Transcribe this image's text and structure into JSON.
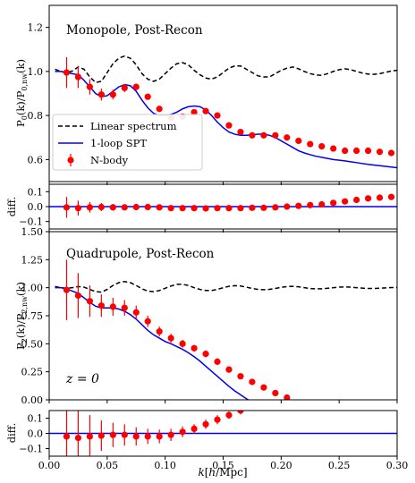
{
  "chart_data": [
    {
      "type": "line",
      "id": "monopole",
      "title": "Monopole, Post-Recon",
      "ylabel": "P_0(k)/P_0,nw(k)",
      "xlim": [
        0.0,
        0.3
      ],
      "ylim": [
        0.5,
        1.3
      ],
      "yticks": [
        0.6,
        0.8,
        1.0,
        1.2
      ],
      "yticklabels": [
        "0.6",
        "0.8",
        "1.0",
        "1.2"
      ],
      "legend": {
        "placement": "lower-left",
        "entries": [
          "Linear spectrum",
          "1-loop SPT",
          "N-body"
        ]
      },
      "series": [
        {
          "name": "Linear spectrum",
          "style": "dashed",
          "color": "#000000",
          "x": [
            0.005,
            0.01,
            0.015,
            0.02,
            0.025,
            0.03,
            0.035,
            0.04,
            0.045,
            0.05,
            0.055,
            0.06,
            0.065,
            0.07,
            0.075,
            0.08,
            0.085,
            0.09,
            0.095,
            0.1,
            0.105,
            0.11,
            0.115,
            0.12,
            0.125,
            0.13,
            0.135,
            0.14,
            0.145,
            0.15,
            0.155,
            0.16,
            0.165,
            0.17,
            0.175,
            0.18,
            0.185,
            0.19,
            0.195,
            0.2,
            0.205,
            0.21,
            0.215,
            0.22,
            0.225,
            0.23,
            0.235,
            0.24,
            0.245,
            0.25,
            0.255,
            0.26,
            0.265,
            0.27,
            0.275,
            0.28,
            0.285,
            0.29,
            0.295,
            0.3
          ],
          "y": [
            1.01,
            1.0,
            0.995,
            1.002,
            1.02,
            1.01,
            0.975,
            0.95,
            0.955,
            0.995,
            1.035,
            1.06,
            1.07,
            1.06,
            1.03,
            0.99,
            0.965,
            0.955,
            0.965,
            0.99,
            1.015,
            1.035,
            1.04,
            1.03,
            1.005,
            0.985,
            0.97,
            0.965,
            0.975,
            0.995,
            1.015,
            1.025,
            1.025,
            1.01,
            0.995,
            0.98,
            0.975,
            0.975,
            0.99,
            1.005,
            1.015,
            1.02,
            1.012,
            1.0,
            0.99,
            0.984,
            0.982,
            0.99,
            1.0,
            1.008,
            1.012,
            1.008,
            1.0,
            0.993,
            0.988,
            0.987,
            0.99,
            0.996,
            1.002,
            1.005
          ]
        },
        {
          "name": "1-loop SPT",
          "style": "solid",
          "color": "#0000ee",
          "x": [
            0.005,
            0.01,
            0.015,
            0.02,
            0.025,
            0.03,
            0.035,
            0.04,
            0.045,
            0.05,
            0.055,
            0.06,
            0.065,
            0.07,
            0.075,
            0.08,
            0.085,
            0.09,
            0.095,
            0.1,
            0.105,
            0.11,
            0.115,
            0.12,
            0.125,
            0.13,
            0.135,
            0.14,
            0.145,
            0.15,
            0.155,
            0.16,
            0.165,
            0.17,
            0.175,
            0.18,
            0.185,
            0.19,
            0.195,
            0.2,
            0.205,
            0.21,
            0.215,
            0.22,
            0.225,
            0.23,
            0.235,
            0.24,
            0.245,
            0.25,
            0.255,
            0.26,
            0.265,
            0.27,
            0.275,
            0.28,
            0.285,
            0.29,
            0.295,
            0.3
          ],
          "y": [
            1.0,
            1.0,
            0.995,
            0.99,
            0.985,
            0.96,
            0.93,
            0.9,
            0.885,
            0.89,
            0.91,
            0.93,
            0.94,
            0.935,
            0.91,
            0.87,
            0.835,
            0.81,
            0.8,
            0.8,
            0.805,
            0.815,
            0.83,
            0.84,
            0.843,
            0.84,
            0.825,
            0.8,
            0.77,
            0.745,
            0.725,
            0.715,
            0.71,
            0.71,
            0.712,
            0.715,
            0.715,
            0.71,
            0.7,
            0.685,
            0.67,
            0.655,
            0.64,
            0.63,
            0.622,
            0.615,
            0.61,
            0.605,
            0.6,
            0.597,
            0.594,
            0.59,
            0.586,
            0.582,
            0.578,
            0.575,
            0.572,
            0.569,
            0.566,
            0.563
          ]
        },
        {
          "name": "N-body",
          "style": "points",
          "color": "#ff0000",
          "x": [
            0.015,
            0.025,
            0.035,
            0.045,
            0.055,
            0.065,
            0.075,
            0.085,
            0.095,
            0.105,
            0.115,
            0.125,
            0.135,
            0.145,
            0.155,
            0.165,
            0.175,
            0.185,
            0.195,
            0.205,
            0.215,
            0.225,
            0.235,
            0.245,
            0.255,
            0.265,
            0.275,
            0.285,
            0.295
          ],
          "y": [
            0.995,
            0.975,
            0.93,
            0.895,
            0.895,
            0.925,
            0.93,
            0.885,
            0.83,
            0.79,
            0.795,
            0.815,
            0.82,
            0.8,
            0.755,
            0.725,
            0.71,
            0.71,
            0.71,
            0.7,
            0.685,
            0.67,
            0.66,
            0.65,
            0.64,
            0.64,
            0.64,
            0.635,
            0.63
          ],
          "err": [
            0.07,
            0.05,
            0.035,
            0.027,
            0.022,
            0.018,
            0.015,
            0.013,
            0.011,
            0.01,
            0.009,
            0.008,
            0.007,
            0.006,
            0.006,
            0.005,
            0.005,
            0.004,
            0.004,
            0.004,
            0.004,
            0.003,
            0.003,
            0.003,
            0.003,
            0.003,
            0.003,
            0.003,
            0.003
          ]
        }
      ]
    },
    {
      "type": "line",
      "id": "monopole-diff",
      "ylabel": "diff.",
      "xlim": [
        0.0,
        0.3
      ],
      "ylim": [
        -0.15,
        0.15
      ],
      "yticks": [
        0.1,
        0.0,
        -0.1
      ],
      "yticklabels": [
        "0.1",
        "0.0",
        "−0.1"
      ],
      "series": [
        {
          "style": "solid",
          "color": "#0000ee",
          "x": [
            0.0,
            0.3
          ],
          "y": [
            0.0,
            0.0
          ]
        },
        {
          "style": "points",
          "color": "#ff0000",
          "x": [
            0.015,
            0.025,
            0.035,
            0.045,
            0.055,
            0.065,
            0.075,
            0.085,
            0.095,
            0.105,
            0.115,
            0.125,
            0.135,
            0.145,
            0.155,
            0.165,
            0.175,
            0.185,
            0.195,
            0.205,
            0.215,
            0.225,
            0.235,
            0.245,
            0.255,
            0.265,
            0.275,
            0.285,
            0.295
          ],
          "y": [
            -0.005,
            -0.01,
            -0.005,
            -0.003,
            -0.005,
            -0.005,
            -0.003,
            -0.003,
            -0.005,
            -0.01,
            -0.01,
            -0.01,
            -0.012,
            -0.01,
            -0.01,
            -0.01,
            -0.008,
            -0.008,
            -0.005,
            0.0,
            0.005,
            0.01,
            0.015,
            0.025,
            0.035,
            0.045,
            0.055,
            0.06,
            0.065
          ],
          "err": [
            0.07,
            0.05,
            0.035,
            0.027,
            0.022,
            0.018,
            0.015,
            0.013,
            0.011,
            0.01,
            0.009,
            0.008,
            0.007,
            0.006,
            0.006,
            0.005,
            0.005,
            0.004,
            0.004,
            0.004,
            0.004,
            0.003,
            0.003,
            0.003,
            0.003,
            0.003,
            0.003,
            0.003,
            0.003
          ]
        }
      ]
    },
    {
      "type": "line",
      "id": "quadrupole",
      "title": "Quadrupole, Post-Recon",
      "annotation": "z = 0",
      "ylabel": "P_2(k)/P_2,nw(k)",
      "xlim": [
        0.0,
        0.3
      ],
      "ylim": [
        0.0,
        1.5
      ],
      "yticks": [
        0.0,
        0.25,
        0.5,
        0.75,
        1.0,
        1.25,
        1.5
      ],
      "yticklabels": [
        "0.00",
        "0.25",
        "0.50",
        "0.75",
        "1.00",
        "1.25",
        "1.50"
      ],
      "series": [
        {
          "name": "Linear spectrum",
          "style": "dashed",
          "color": "#000000",
          "x": [
            0.005,
            0.01,
            0.015,
            0.02,
            0.025,
            0.03,
            0.035,
            0.04,
            0.045,
            0.05,
            0.055,
            0.06,
            0.065,
            0.07,
            0.075,
            0.08,
            0.085,
            0.09,
            0.095,
            0.1,
            0.105,
            0.11,
            0.115,
            0.12,
            0.125,
            0.13,
            0.135,
            0.14,
            0.145,
            0.15,
            0.155,
            0.16,
            0.165,
            0.17,
            0.175,
            0.18,
            0.185,
            0.19,
            0.195,
            0.2,
            0.205,
            0.21,
            0.215,
            0.22,
            0.225,
            0.23,
            0.235,
            0.24,
            0.245,
            0.25,
            0.255,
            0.26,
            0.265,
            0.27,
            0.275,
            0.28,
            0.285,
            0.29,
            0.295,
            0.3
          ],
          "y": [
            1.01,
            1.0,
            0.995,
            1.0,
            1.01,
            1.005,
            0.985,
            0.965,
            0.96,
            0.985,
            1.02,
            1.045,
            1.055,
            1.045,
            1.02,
            0.99,
            0.97,
            0.965,
            0.975,
            0.995,
            1.015,
            1.03,
            1.03,
            1.02,
            1.0,
            0.985,
            0.975,
            0.975,
            0.985,
            1.0,
            1.012,
            1.018,
            1.015,
            1.005,
            0.993,
            0.985,
            0.982,
            0.985,
            0.993,
            1.003,
            1.01,
            1.012,
            1.008,
            1.0,
            0.993,
            0.99,
            0.99,
            0.995,
            1.0,
            1.005,
            1.007,
            1.005,
            1.0,
            0.996,
            0.993,
            0.993,
            0.995,
            0.998,
            1.001,
            1.003
          ]
        },
        {
          "name": "1-loop SPT",
          "style": "solid",
          "color": "#0000ee",
          "x": [
            0.005,
            0.01,
            0.015,
            0.02,
            0.025,
            0.03,
            0.035,
            0.04,
            0.045,
            0.05,
            0.055,
            0.06,
            0.065,
            0.07,
            0.075,
            0.08,
            0.085,
            0.09,
            0.095,
            0.1,
            0.105,
            0.11,
            0.115,
            0.12,
            0.125,
            0.13,
            0.135,
            0.14,
            0.145,
            0.15,
            0.155,
            0.16,
            0.165,
            0.17,
            0.175
          ],
          "y": [
            1.0,
            1.0,
            0.99,
            0.97,
            0.95,
            0.91,
            0.87,
            0.835,
            0.82,
            0.82,
            0.82,
            0.81,
            0.79,
            0.76,
            0.72,
            0.67,
            0.62,
            0.58,
            0.55,
            0.52,
            0.5,
            0.475,
            0.45,
            0.42,
            0.385,
            0.345,
            0.3,
            0.255,
            0.21,
            0.165,
            0.12,
            0.08,
            0.045,
            0.01,
            -0.02
          ]
        },
        {
          "name": "N-body",
          "style": "points",
          "color": "#ff0000",
          "x": [
            0.015,
            0.025,
            0.035,
            0.045,
            0.055,
            0.065,
            0.075,
            0.085,
            0.095,
            0.105,
            0.115,
            0.125,
            0.135,
            0.145,
            0.155,
            0.165,
            0.175,
            0.185,
            0.195,
            0.205
          ],
          "y": [
            0.98,
            0.93,
            0.88,
            0.84,
            0.83,
            0.82,
            0.78,
            0.7,
            0.61,
            0.55,
            0.5,
            0.46,
            0.41,
            0.34,
            0.27,
            0.21,
            0.16,
            0.11,
            0.06,
            0.02
          ],
          "err": [
            0.27,
            0.2,
            0.14,
            0.1,
            0.08,
            0.07,
            0.06,
            0.05,
            0.045,
            0.04,
            0.035,
            0.03,
            0.03,
            0.03,
            0.025,
            0.025,
            0.02,
            0.02,
            0.02,
            0.02
          ]
        }
      ]
    },
    {
      "type": "line",
      "id": "quadrupole-diff",
      "ylabel": "diff.",
      "xlabel": "k[h/Mpc]",
      "xlim": [
        0.0,
        0.3
      ],
      "xticks": [
        0.0,
        0.05,
        0.1,
        0.15,
        0.2,
        0.25,
        0.3
      ],
      "xticklabels": [
        "0.00",
        "0.05",
        "0.10",
        "0.15",
        "0.20",
        "0.25",
        "0.30"
      ],
      "ylim": [
        -0.15,
        0.15
      ],
      "yticks": [
        0.1,
        0.0,
        -0.1
      ],
      "yticklabels": [
        "0.1",
        "0.0",
        "−0.1"
      ],
      "series": [
        {
          "style": "solid",
          "color": "#0000ee",
          "x": [
            0.0,
            0.3
          ],
          "y": [
            0.0,
            0.0
          ]
        },
        {
          "style": "points",
          "color": "#ff0000",
          "x": [
            0.015,
            0.025,
            0.035,
            0.045,
            0.055,
            0.065,
            0.075,
            0.085,
            0.095,
            0.105,
            0.115,
            0.125,
            0.135,
            0.145,
            0.155,
            0.165
          ],
          "y": [
            -0.02,
            -0.03,
            -0.02,
            -0.015,
            -0.01,
            -0.01,
            -0.02,
            -0.02,
            -0.02,
            -0.01,
            0.01,
            0.03,
            0.06,
            0.09,
            0.12,
            0.15
          ],
          "err": [
            0.27,
            0.2,
            0.14,
            0.1,
            0.08,
            0.07,
            0.06,
            0.05,
            0.045,
            0.04,
            0.035,
            0.03,
            0.03,
            0.03,
            0.025,
            0.025
          ]
        }
      ]
    }
  ]
}
